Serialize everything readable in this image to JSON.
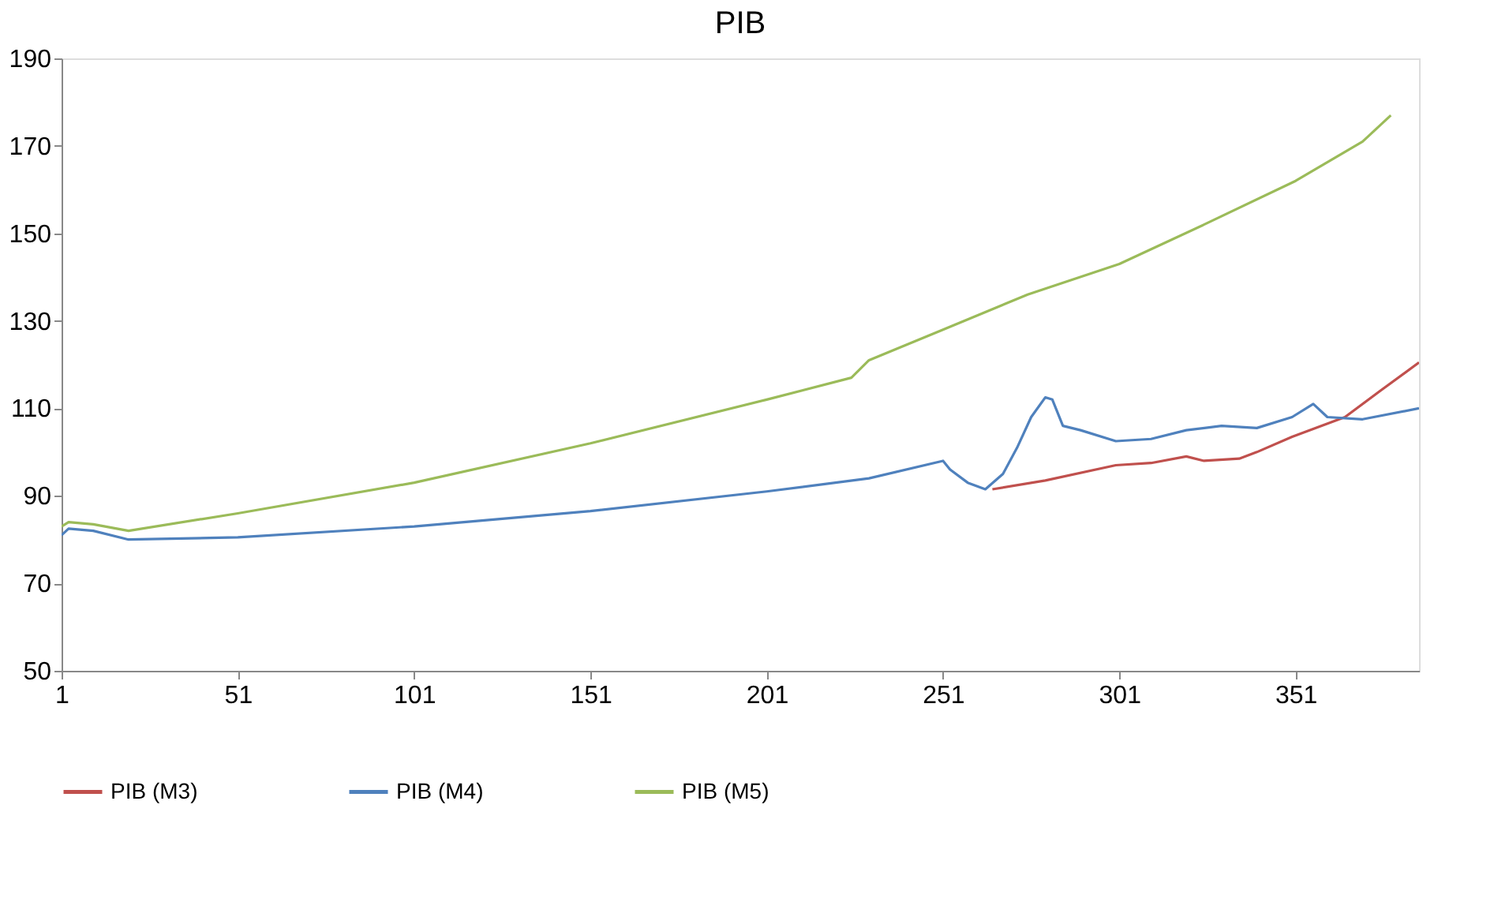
{
  "chart_data": {
    "type": "line",
    "title": "PIB",
    "legend": "bottom",
    "grid": false,
    "marker": "none",
    "line_style": "solid",
    "xlim": [
      1,
      386
    ],
    "xticks": [
      1,
      51,
      101,
      151,
      201,
      251,
      301,
      351
    ],
    "ylim": [
      50,
      190
    ],
    "yticks": [
      50,
      70,
      90,
      110,
      130,
      150,
      170,
      190
    ],
    "series": [
      {
        "name": "PIB (M3)",
        "color": "#c0504d",
        "x": [
          265,
          280,
          300,
          310,
          320,
          325,
          335,
          340,
          350,
          365,
          375,
          386
        ],
        "values": [
          91.5,
          93.5,
          97,
          97.5,
          99,
          98,
          98.5,
          100,
          103.5,
          108,
          114,
          120.5
        ]
      },
      {
        "name": "PIB (M4)",
        "color": "#4f81bd",
        "x": [
          1,
          3,
          10,
          20,
          51,
          101,
          151,
          201,
          230,
          251,
          253,
          258,
          263,
          268,
          272,
          276,
          280,
          282,
          285,
          290,
          300,
          310,
          320,
          330,
          340,
          350,
          356,
          360,
          370,
          386
        ],
        "values": [
          81,
          82.5,
          82,
          80,
          80.5,
          83,
          86.5,
          91,
          94,
          98,
          96,
          93,
          91.5,
          95,
          101,
          108,
          112.5,
          112,
          106,
          105,
          102.5,
          103,
          105,
          106,
          105.5,
          108,
          111,
          108,
          107.5,
          110
        ]
      },
      {
        "name": "PIB (M5)",
        "color": "#9bbb59",
        "x": [
          1,
          3,
          10,
          20,
          51,
          101,
          151,
          201,
          225,
          230,
          251,
          275,
          301,
          325,
          351,
          370,
          378
        ],
        "values": [
          83,
          84,
          83.5,
          82,
          86,
          93,
          102,
          112,
          117,
          121,
          128,
          136,
          143,
          152,
          162,
          171,
          177
        ]
      }
    ]
  }
}
